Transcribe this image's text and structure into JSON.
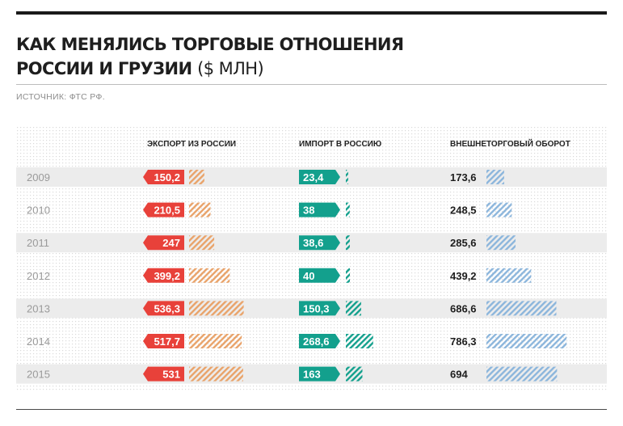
{
  "header": {
    "title_line1": "КАК МЕНЯЛИСЬ ТОРГОВЫЕ ОТНОШЕНИЯ",
    "title_line2": "РОССИИ И ГРУЗИИ",
    "title_unit": "($ МЛН)",
    "source": "ИСТОЧНИК: ФТС РФ."
  },
  "colors": {
    "export": "#e8413a",
    "export_hatch": "#e9a36a",
    "import": "#13a08d",
    "import_hatch": "#13a08d",
    "turnover_hatch": "#8cb6dc",
    "row_band": "#ececec"
  },
  "chart_data": {
    "type": "bar",
    "categories": [
      "2009",
      "2010",
      "2011",
      "2012",
      "2013",
      "2014",
      "2015"
    ],
    "series": [
      {
        "name": "ЭКСПОРТ ИЗ РОССИИ",
        "values": [
          150.2,
          210.5,
          247,
          399.2,
          536.3,
          517.7,
          531
        ],
        "labels": [
          "150,2",
          "210,5",
          "247",
          "399,2",
          "536,3",
          "517,7",
          "531"
        ]
      },
      {
        "name": "ИМПОРТ В РОССИЮ",
        "values": [
          23.4,
          38,
          38.6,
          40,
          150.3,
          268.6,
          163
        ],
        "labels": [
          "23,4",
          "38",
          "38,6",
          "40",
          "150,3",
          "268,6",
          "163"
        ]
      },
      {
        "name": "ВНЕШНЕТОРГОВЫЙ ОБОРОТ",
        "values": [
          173.6,
          248.5,
          285.6,
          439.2,
          686.6,
          786.3,
          694
        ],
        "labels": [
          "173,6",
          "248,5",
          "285,6",
          "439,2",
          "686,6",
          "786,3",
          "694"
        ]
      }
    ]
  }
}
